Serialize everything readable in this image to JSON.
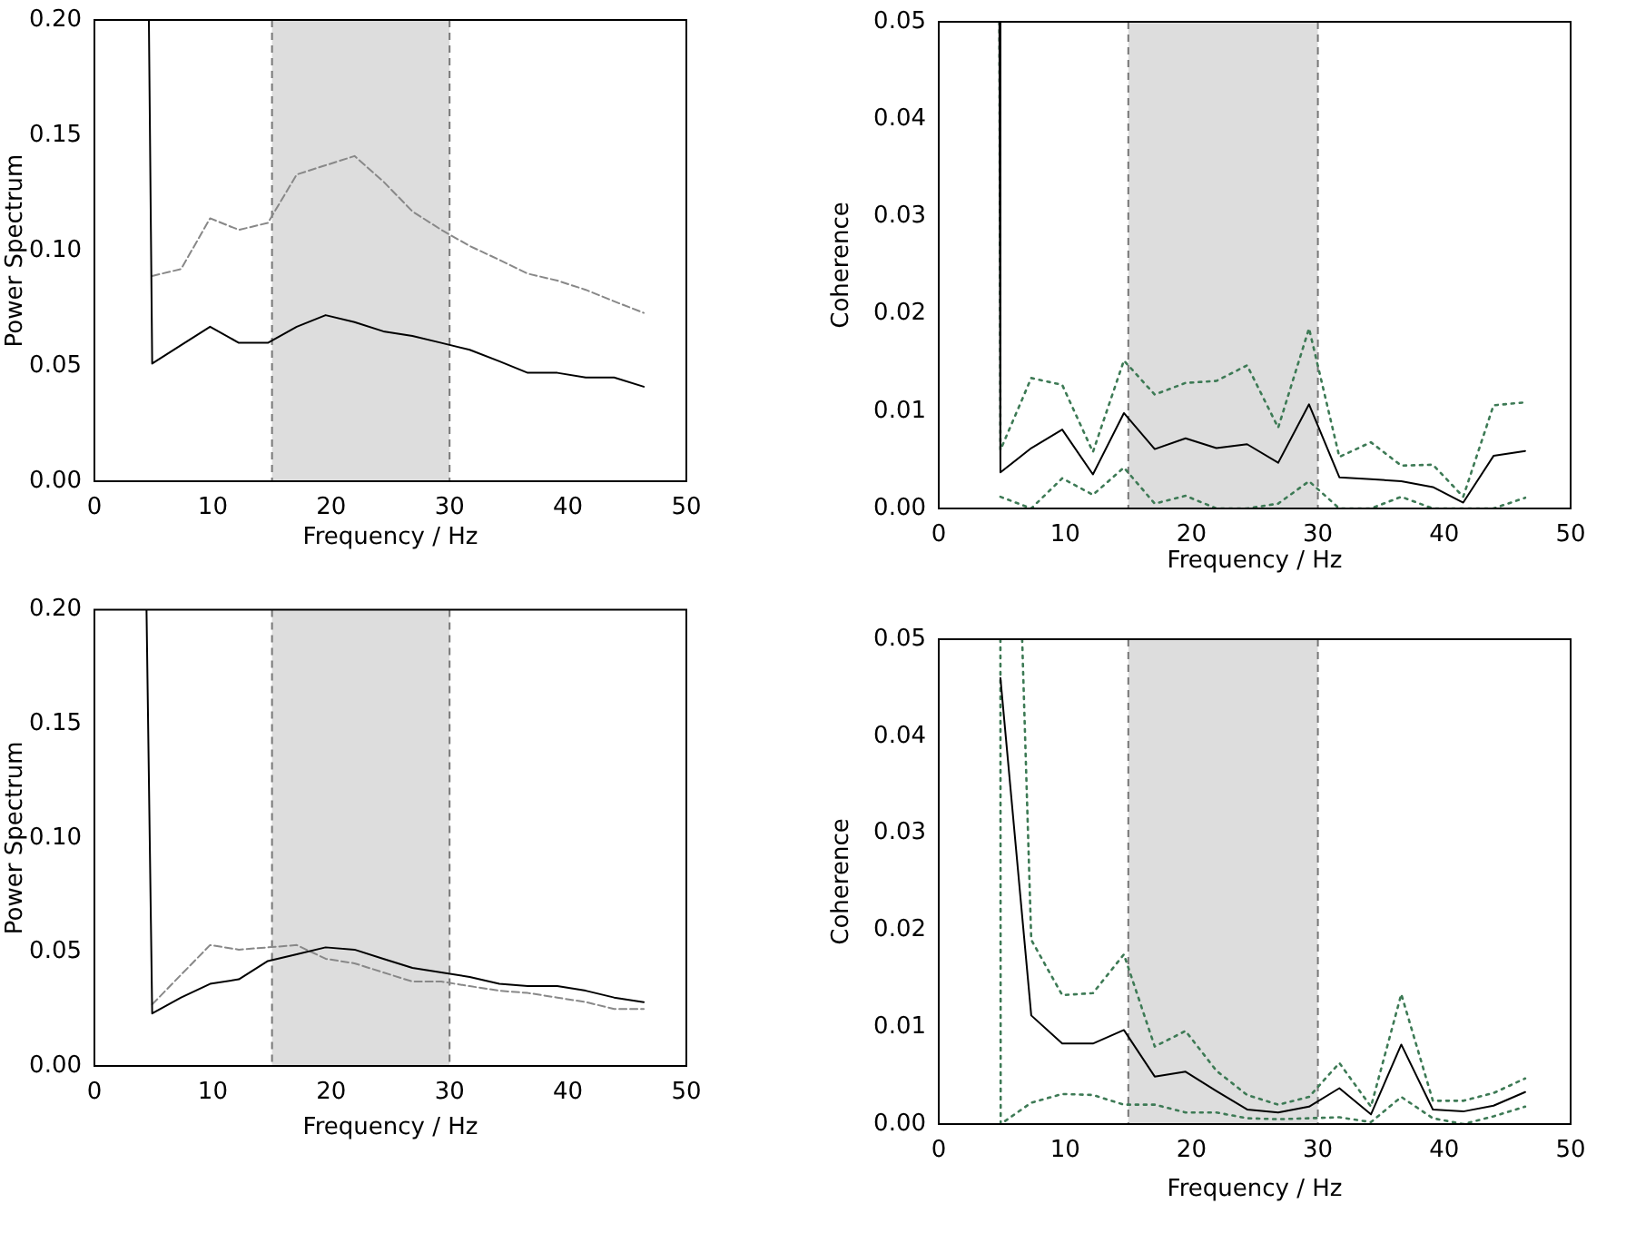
{
  "chart_data": [
    {
      "type": "line",
      "xlabel": "Frequency / Hz",
      "ylabel": "Power Spectrum",
      "xlim": [
        0,
        50
      ],
      "xticks": [
        0,
        10,
        20,
        30,
        40,
        50
      ],
      "ylim": [
        0,
        0.2
      ],
      "yticks": [
        {
          "value": 0,
          "label": "0.00"
        },
        {
          "value": 0.05,
          "label": "0.05"
        },
        {
          "value": 0.1,
          "label": "0.10"
        },
        {
          "value": 0.15,
          "label": "0.15"
        },
        {
          "value": 0.2,
          "label": "0.20"
        }
      ],
      "bands": [
        {
          "axis": "x",
          "from": 15,
          "to": 30,
          "color": "#dddddd"
        }
      ],
      "x": [
        4.88,
        7.32,
        9.77,
        12.2,
        14.65,
        17.09,
        19.53,
        21.97,
        24.4,
        26.86,
        29.3,
        31.7,
        34.2,
        36.6,
        39.1,
        41.5,
        43.9,
        46.4
      ],
      "series": [
        {
          "color": "#000000",
          "line_style": "solid",
          "x": [
            4.6,
            4.88,
            7.32,
            9.77,
            12.2,
            14.65,
            17.09,
            19.53,
            21.97,
            24.4,
            26.86,
            29.3,
            31.7,
            34.2,
            36.6,
            39.1,
            41.5,
            43.9,
            46.4
          ],
          "values": [
            0.2,
            0.051,
            0.059,
            0.067,
            0.06,
            0.06,
            0.067,
            0.072,
            0.069,
            0.065,
            0.063,
            0.06,
            0.057,
            0.052,
            0.047,
            0.047,
            0.045,
            0.045,
            0.041
          ]
        },
        {
          "color": "#888888",
          "line_style": "dashed",
          "values": [
            0.089,
            0.092,
            0.114,
            0.109,
            0.112,
            0.133,
            0.137,
            0.141,
            0.13,
            0.117,
            0.109,
            0.102,
            0.096,
            0.09,
            0.087,
            0.083,
            0.078,
            0.073
          ]
        }
      ]
    },
    {
      "type": "line",
      "xlabel": "Frequency / Hz",
      "ylabel": "Coherence",
      "xlim": [
        0,
        50
      ],
      "xticks": [
        0,
        10,
        20,
        30,
        40,
        50
      ],
      "ylim": [
        0,
        0.05
      ],
      "yticks": [
        {
          "value": 0,
          "label": "0.00"
        },
        0.01,
        0.02,
        0.03,
        0.04,
        0.05
      ],
      "bands": [
        {
          "axis": "x",
          "from": 15,
          "to": 30,
          "color": "#dddddd"
        }
      ],
      "x": [
        4.88,
        7.32,
        9.77,
        12.2,
        14.65,
        17.09,
        19.53,
        21.97,
        24.4,
        26.86,
        29.3,
        31.7,
        34.2,
        36.6,
        39.1,
        41.5,
        43.9,
        46.4
      ],
      "series": [
        {
          "color": "#000000",
          "line_style": "solid",
          "x": [
            4.8,
            4.88,
            7.32,
            9.77,
            12.2,
            14.65,
            17.09,
            19.53,
            21.97,
            24.4,
            26.86,
            29.3,
            31.7,
            34.2,
            36.6,
            39.1,
            41.5,
            43.9,
            46.4
          ],
          "values": [
            0.05,
            0.0037,
            0.0062,
            0.0081,
            0.0035,
            0.0098,
            0.0061,
            0.0072,
            0.0062,
            0.0066,
            0.0047,
            0.0107,
            0.0032,
            0.003,
            0.0028,
            0.0022,
            0.0006,
            0.0054,
            0.0059
          ]
        },
        {
          "color": "#3d7a55",
          "line_style": "dotted",
          "x": [
            4.8,
            4.88,
            7.32,
            9.77,
            12.2,
            14.65,
            17.09,
            19.53,
            21.97,
            24.4,
            26.86,
            29.3,
            31.7,
            34.2,
            36.6,
            39.1,
            41.5,
            43.9,
            46.4
          ],
          "values": [
            0.05,
            0.006,
            0.0134,
            0.0127,
            0.0058,
            0.0152,
            0.0117,
            0.0129,
            0.0131,
            0.0147,
            0.0083,
            0.0185,
            0.0053,
            0.0068,
            0.0044,
            0.0045,
            0.0012,
            0.0106,
            0.0109
          ]
        },
        {
          "color": "#3d7a55",
          "line_style": "dotted",
          "values": [
            0.0012,
            0,
            0.0031,
            0.0014,
            0.0042,
            0.0005,
            0.0013,
            0,
            0,
            0.0005,
            0.0028,
            0,
            0,
            0.0012,
            0,
            0,
            0,
            0.0011
          ]
        }
      ]
    },
    {
      "type": "line",
      "xlabel": "Frequency / Hz",
      "ylabel": "Power Spectrum",
      "xlim": [
        0,
        50
      ],
      "xticks": [
        0,
        10,
        20,
        30,
        40,
        50
      ],
      "ylim": [
        0,
        0.2
      ],
      "yticks": [
        {
          "value": 0,
          "label": "0.00"
        },
        {
          "value": 0.05,
          "label": "0.05"
        },
        {
          "value": 0.1,
          "label": "0.10"
        },
        {
          "value": 0.15,
          "label": "0.15"
        },
        {
          "value": 0.2,
          "label": "0.20"
        }
      ],
      "bands": [
        {
          "axis": "x",
          "from": 15,
          "to": 30,
          "color": "#dddddd"
        }
      ],
      "x": [
        4.88,
        7.32,
        9.77,
        12.2,
        14.65,
        17.09,
        19.53,
        21.97,
        24.4,
        26.86,
        29.3,
        31.7,
        34.2,
        36.6,
        39.1,
        41.5,
        43.9,
        46.4
      ],
      "series": [
        {
          "color": "#000000",
          "line_style": "solid",
          "x": [
            4.4,
            4.88,
            7.32,
            9.77,
            12.2,
            14.65,
            17.09,
            19.53,
            21.97,
            24.4,
            26.86,
            29.3,
            31.7,
            34.2,
            36.6,
            39.1,
            41.5,
            43.9,
            46.4
          ],
          "values": [
            0.2,
            0.023,
            0.03,
            0.036,
            0.038,
            0.046,
            0.049,
            0.052,
            0.051,
            0.047,
            0.043,
            0.041,
            0.039,
            0.036,
            0.035,
            0.035,
            0.033,
            0.03,
            0.028
          ]
        },
        {
          "color": "#888888",
          "line_style": "dashed",
          "values": [
            0.027,
            0.04,
            0.053,
            0.051,
            0.052,
            0.053,
            0.047,
            0.045,
            0.041,
            0.037,
            0.037,
            0.035,
            0.033,
            0.032,
            0.03,
            0.028,
            0.025,
            0.025
          ]
        }
      ]
    },
    {
      "type": "line",
      "xlabel": "Frequency / Hz",
      "ylabel": "Coherence",
      "xlim": [
        0,
        50
      ],
      "xticks": [
        0,
        10,
        20,
        30,
        40,
        50
      ],
      "ylim": [
        0,
        0.05
      ],
      "yticks": [
        {
          "value": 0,
          "label": "0.00"
        },
        0.01,
        0.02,
        0.03,
        0.04,
        0.05
      ],
      "bands": [
        {
          "axis": "x",
          "from": 15,
          "to": 30,
          "color": "#dddddd"
        }
      ],
      "x": [
        4.88,
        7.32,
        9.77,
        12.2,
        14.65,
        17.09,
        19.53,
        21.97,
        24.4,
        26.86,
        29.3,
        31.7,
        34.2,
        36.6,
        39.1,
        41.5,
        43.9,
        46.4
      ],
      "series": [
        {
          "color": "#000000",
          "line_style": "solid",
          "values": [
            0.046,
            0.0112,
            0.0083,
            0.0083,
            0.0097,
            0.0049,
            0.0054,
            0.0034,
            0.0015,
            0.0012,
            0.0018,
            0.0037,
            0.001,
            0.0082,
            0.0015,
            0.0013,
            0.0019,
            0.0033
          ]
        },
        {
          "color": "#3d7a55",
          "line_style": "dotted",
          "x": [
            6.6,
            7.32,
            9.77,
            12.2,
            14.65,
            17.09,
            19.53,
            21.97,
            24.4,
            26.86,
            29.3,
            31.7,
            34.2,
            36.6,
            39.1,
            41.5,
            43.9,
            46.4
          ],
          "values": [
            0.05,
            0.019,
            0.0133,
            0.0135,
            0.0175,
            0.008,
            0.0096,
            0.0055,
            0.003,
            0.002,
            0.0028,
            0.0063,
            0.0018,
            0.0134,
            0.0024,
            0.0024,
            0.0032,
            0.0047
          ]
        },
        {
          "color": "#3d7a55",
          "line_style": "dotted",
          "x": [
            4.88,
            4.9,
            7.32,
            9.77,
            12.2,
            14.65,
            17.09,
            19.53,
            21.97,
            24.4,
            26.86,
            29.3,
            31.7,
            34.2,
            36.6,
            39.1,
            41.5,
            43.9,
            46.4
          ],
          "values": [
            0.05,
            0,
            0.0022,
            0.0031,
            0.003,
            0.002,
            0.002,
            0.0012,
            0.0012,
            0.0006,
            0.0005,
            0.0006,
            0.0007,
            0.0002,
            0.0028,
            0.0006,
            0,
            0.0008,
            0.0018
          ]
        }
      ]
    }
  ]
}
